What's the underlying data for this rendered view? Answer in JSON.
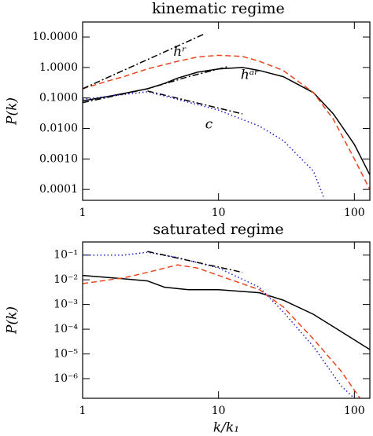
{
  "chart_data": [
    {
      "type": "line",
      "title": "kinematic regime",
      "ylabel": "P(k)",
      "log_x": true,
      "log_y": true,
      "xlim": [
        1,
        130
      ],
      "xticks": [
        1,
        10,
        100
      ],
      "ylim": [
        4.4e-05,
        31
      ],
      "yticks": [
        {
          "value": 10,
          "label": "10.0000"
        },
        {
          "value": 1,
          "label": "1.0000"
        },
        {
          "value": 0.1,
          "label": "0.1000"
        },
        {
          "value": 0.01,
          "label": "0.0100"
        },
        {
          "value": 0.001,
          "label": "0.0010"
        },
        {
          "value": 0.0001,
          "label": "0.0001"
        }
      ],
      "annotations": [
        {
          "text": "hʳ",
          "color": "#e8461e"
        },
        {
          "text": "hᵃʳ",
          "color": "#000000"
        },
        {
          "text": "c",
          "color": "#1f1fcc"
        }
      ],
      "series": [
        {
          "color": "#000000",
          "style": "solid",
          "x": [
            1,
            1.5,
            2,
            3,
            4,
            5,
            7,
            10,
            15,
            20,
            30,
            50,
            70,
            100,
            130
          ],
          "values": [
            0.08,
            0.11,
            0.14,
            0.2,
            0.3,
            0.45,
            0.7,
            0.9,
            1.0,
            0.8,
            0.5,
            0.15,
            0.03,
            0.003,
            0.0003
          ]
        },
        {
          "color": "#e8461e",
          "style": "dashed",
          "x": [
            1,
            1.5,
            2,
            3,
            5,
            7,
            10,
            15,
            20,
            30,
            50,
            70,
            100,
            130
          ],
          "values": [
            0.2,
            0.35,
            0.5,
            0.9,
            1.6,
            2.2,
            2.5,
            2.3,
            1.6,
            0.8,
            0.15,
            0.02,
            0.001,
            0.0001
          ]
        },
        {
          "color": "#1f1fcc",
          "style": "dotted",
          "x": [
            1,
            2,
            3,
            5,
            10,
            20,
            30,
            50,
            60
          ],
          "values": [
            0.09,
            0.13,
            0.16,
            0.09,
            0.04,
            0.012,
            0.004,
            0.0004,
            5e-05
          ]
        },
        {
          "color": "#000000",
          "style": "dashdot",
          "x": [
            1,
            8
          ],
          "values": [
            0.2,
            13
          ]
        },
        {
          "color": "#000000",
          "style": "dashdot",
          "x": [
            1,
            3,
            6,
            12
          ],
          "values": [
            0.07,
            0.2,
            0.5,
            1.1
          ]
        },
        {
          "color": "#000000",
          "style": "dashdot",
          "x": [
            3,
            15
          ],
          "values": [
            0.17,
            0.03
          ]
        }
      ]
    },
    {
      "type": "line",
      "title": "saturated regime",
      "ylabel": "P(k)",
      "xlabel": "k/k₁",
      "log_x": true,
      "log_y": true,
      "xlim": [
        1,
        130
      ],
      "xticks": [
        1,
        10,
        100
      ],
      "ylim": [
        1.6e-07,
        0.34
      ],
      "yticks": [
        {
          "value": 0.1,
          "label": "10⁻¹"
        },
        {
          "value": 0.01,
          "label": "10⁻²"
        },
        {
          "value": 0.001,
          "label": "10⁻³"
        },
        {
          "value": 0.0001,
          "label": "10⁻⁴"
        },
        {
          "value": 1e-05,
          "label": "10⁻⁵"
        },
        {
          "value": 1e-06,
          "label": "10⁻⁶"
        }
      ],
      "series": [
        {
          "color": "#000000",
          "style": "solid",
          "x": [
            1,
            2,
            3,
            4,
            6,
            10,
            20,
            30,
            50,
            80,
            130
          ],
          "values": [
            0.015,
            0.011,
            0.009,
            0.005,
            0.004,
            0.004,
            0.003,
            0.0015,
            0.0004,
            8e-05,
            1.5e-05
          ]
        },
        {
          "color": "#e8461e",
          "style": "dashed",
          "x": [
            1,
            2,
            3,
            5,
            7,
            10,
            20,
            30,
            50,
            80,
            110
          ],
          "values": [
            0.007,
            0.012,
            0.02,
            0.04,
            0.03,
            0.015,
            0.004,
            0.0008,
            4e-05,
            2e-06,
            1.6e-07
          ]
        },
        {
          "color": "#1f1fcc",
          "style": "dotted",
          "x": [
            1,
            2,
            3,
            5,
            10,
            20,
            30,
            50,
            80,
            100
          ],
          "values": [
            0.1,
            0.1,
            0.13,
            0.08,
            0.03,
            0.005,
            0.0005,
            2e-05,
            5e-07,
            1.6e-07
          ]
        },
        {
          "color": "#000000",
          "style": "dashdot",
          "x": [
            3,
            15
          ],
          "values": [
            0.14,
            0.02
          ]
        }
      ]
    }
  ]
}
